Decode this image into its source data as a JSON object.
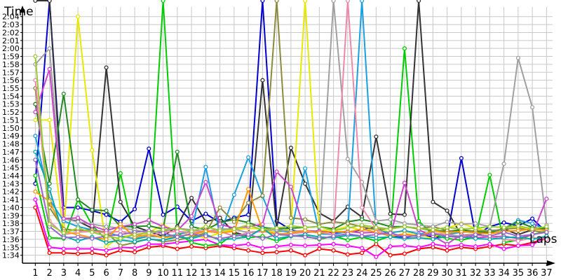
{
  "chart_data": {
    "type": "line",
    "ylabel": "Time",
    "xlabel": "Laps",
    "grid": true,
    "legend": "none",
    "xlim": [
      0,
      37
    ],
    "ylim": [
      "1:33",
      "2:06"
    ],
    "x": [
      1,
      2,
      3,
      4,
      5,
      6,
      7,
      8,
      9,
      10,
      11,
      12,
      13,
      14,
      15,
      16,
      17,
      18,
      19,
      20,
      21,
      22,
      23,
      24,
      25,
      26,
      27,
      28,
      29,
      30,
      31,
      32,
      33,
      34,
      35,
      36,
      37
    ],
    "x_tick_labels": [
      "1",
      "2",
      "3",
      "4",
      "5",
      "6",
      "7",
      "8",
      "9",
      "10",
      "11",
      "12",
      "13",
      "14",
      "15",
      "16",
      "17",
      "18",
      "19",
      "20",
      "21",
      "22",
      "23",
      "24",
      "25",
      "26",
      "27",
      "28",
      "29",
      "30",
      "31",
      "32",
      "33",
      "34",
      "35",
      "36",
      "37"
    ],
    "y_tick_labels": [
      "1:34",
      "1:35",
      "1:36",
      "1:37",
      "1:38",
      "1:39",
      "1:40",
      "1:41",
      "1:42",
      "1:43",
      "1:44",
      "1:45",
      "1:46",
      "1:47",
      "1:48",
      "1:49",
      "1:50",
      "1:51",
      "1:52",
      "1:53",
      "1:54",
      "1:55",
      "1:56",
      "1:57",
      "1:58",
      "1:59",
      "2:00",
      "2:01",
      "2:02",
      "2:03",
      "2:04"
    ],
    "series": [
      {
        "color": "#ff0000",
        "values": [
          "1:40",
          "1:34.3",
          "1:34.3",
          "1:34.2",
          "1:34.3",
          "1:34.0",
          "1:34.6",
          "1:34.4",
          "1:35.0",
          "1:35.2",
          "1:34.8",
          "1:35.1",
          "1:34.9",
          "1:35.2",
          "1:34.9",
          "1:34.6",
          "1:34.3",
          "1:34.4",
          "1:34.6",
          "1:34.0",
          "1:34.8",
          "1:34.6",
          "1:34.1",
          "1:34.3",
          "1:35.4",
          "1:34.0",
          "1:34.2",
          "1:34.8",
          "1:35.0",
          "1:34.6",
          "1:35.0",
          "1:34.8",
          "1:35.1",
          "1:35.4",
          "1:35.2",
          "1:35.6",
          "1:36.1"
        ]
      },
      {
        "color": "#ff00ff",
        "values": [
          "1:41",
          "1:35.0",
          "1:34.8",
          "1:34.8",
          "1:34.8",
          "1:34.6",
          "1:35.0",
          "1:34.9",
          "1:35.4",
          "1:35.4",
          "1:35.6",
          "1:35.8",
          "1:36.0",
          "1:35.3",
          "1:35.2",
          "1:35.4",
          "1:34.9",
          "1:35.1",
          "1:35.3",
          "1:35.2",
          "1:35.3",
          "1:35.4",
          "1:35.2",
          "1:34.9",
          "1:33.8",
          "1:35.1",
          "1:35.2",
          "1:35.0",
          "1:35.4",
          "1:35.1",
          "1:35.3",
          "1:35.1",
          "1:35.4",
          "1:34.8",
          "1:35.2",
          "1:35.3",
          "1:36.4"
        ]
      },
      {
        "color": "#0000cc",
        "values": [
          "1:43",
          "2:06",
          "1:40",
          "1:40",
          "1:39.6",
          "1:39.1",
          "1:38.2",
          "1:39.8",
          "1:47.4",
          "1:39.1",
          "1:40.1",
          "1:38.3",
          "1:39.2",
          "1:38.1",
          "1:38.7",
          "1:39.1",
          "2:06",
          "1:38.3",
          "1:37.2",
          "1:36.8",
          "1:37.1",
          "1:36.8",
          "1:36.9",
          "1:37.2",
          "1:37.5",
          "1:36.4",
          "1:36.2",
          "1:36.6",
          "1:36.3",
          "1:36.3",
          "1:46.2",
          "1:36.5",
          "1:37.6",
          "1:38.1",
          "1:37.7",
          "1:38.6",
          "1:36.9"
        ]
      },
      {
        "color": "#00cc00",
        "values": [
          "1:44",
          "1:36.2",
          "1:36.1",
          "1:41",
          "1:37.8",
          "1:35.9",
          "1:44.3",
          "1:36.0",
          "1:36.4",
          "2:06",
          "1:36.8",
          "1:35.6",
          "1:35.2",
          "1:35.4",
          "1:36.7",
          "1:36.2",
          "1:36.4",
          "1:35.8",
          "1:36.4",
          "1:36.4",
          "1:36.0",
          "1:36.4",
          "1:35.9",
          "1:36.3",
          "1:35.8",
          "1:36.4",
          "2:00",
          "1:38.3",
          "1:36.6",
          "1:36.1",
          "1:35.9",
          "1:36.3",
          "1:44.1",
          "1:35.6",
          "1:35.9",
          "1:36.6",
          "1:37.0"
        ]
      },
      {
        "color": "#333333",
        "values": [
          "2:06",
          "2:06",
          "1:38.6",
          "1:38.3",
          "1:37.4",
          "1:57.6",
          "1:40.7",
          "1:37.6",
          "1:37.0",
          "1:36.4",
          "1:37.6",
          "1:41.2",
          "1:38.2",
          "1:38.7",
          "1:36.9",
          "1:36.4",
          "1:56",
          "1:37.4",
          "1:47.5",
          "1:43.0",
          "1:39.3",
          "1:38.3",
          "1:40.1",
          "1:38.8",
          "1:48.9",
          "1:39.2",
          "1:39.1",
          "2:06",
          "1:40.7",
          "1:39.6",
          "1:36.5",
          "1:36.6",
          "1:36.9",
          "1:37.3",
          "1:36.6",
          "1:37.2",
          "1:37.5"
        ]
      },
      {
        "color": "#e8e800",
        "values": [
          "1:51",
          "1:51",
          "1:36.6",
          "2:04",
          "1:47.2",
          "1:35.1",
          "1:36.3",
          "1:36.6",
          "1:36.9",
          "1:37.8",
          "1:37.0",
          "1:36.5",
          "1:36.2",
          "1:36.8",
          "1:37.2",
          "1:37.4",
          "1:37.3",
          "1:36.8",
          "1:37.4",
          "2:06",
          "1:37.1",
          "1:37.2",
          "1:37.6",
          "1:37.1",
          "1:37.4",
          "1:36.9",
          "1:37.0",
          "1:36.6",
          "1:36.1",
          "1:37.4",
          "1:38.0",
          "1:37.4",
          "1:37.0",
          "1:37.3",
          "1:37.5",
          "1:37.4",
          "1:37.2"
        ]
      },
      {
        "color": "#1a9fe0",
        "values": [
          "1:49",
          "1:41",
          "1:38.3",
          "1:37.6",
          "1:37.2",
          "1:36.9",
          "1:36.4",
          "1:36.1",
          "1:36.4",
          "1:36.3",
          "1:36.6",
          "1:37.0",
          "1:45.1",
          "1:36.5",
          "1:41.6",
          "1:46.3",
          "1:41.4",
          "1:37.1",
          "1:36.9",
          "1:44.9",
          "1:36.7",
          "1:36.6",
          "1:37.0",
          "2:06",
          "1:37.2",
          "1:36.8",
          "1:37.1",
          "1:36.7",
          "1:36.8",
          "1:36.6",
          "1:36.9",
          "1:37.0",
          "1:37.1",
          "1:37.2",
          "1:38.4",
          "1:38.0",
          "1:37.2"
        ]
      },
      {
        "color": "#228822",
        "values": [
          "1:53",
          "1:43",
          "1:54.3",
          "1:41",
          "1:39.7",
          "1:39.6",
          "1:37.6",
          "1:37.6",
          "1:37.7",
          "1:37.3",
          "1:47",
          "1:37.6",
          "1:37.2",
          "1:38.1",
          "1:38.5",
          "1:38.1",
          "1:37.5",
          "1:37.3",
          "1:37.4",
          "1:37.5",
          "1:37.6",
          "1:37.3",
          "1:38.2",
          "1:38.5",
          "1:38.1",
          "1:37.6",
          "1:37.6",
          "1:37.4",
          "1:37.1",
          "1:37.0",
          "1:37.2",
          "1:37.0",
          "1:36.8",
          "1:37.4",
          "1:38.2",
          "1:37.5",
          "1:37.3"
        ]
      },
      {
        "color": "#8b8b3c",
        "values": [
          "1:55",
          "1:40",
          "1:37.3",
          "1:37.1",
          "1:37.2",
          "1:36.9",
          "1:35.2",
          "1:35.6",
          "1:36.1",
          "1:35.7",
          "1:35.9",
          "1:36.3",
          "1:36.8",
          "1:40",
          "1:38.2",
          "1:40.6",
          "1:41.5",
          "2:06",
          "1:38.7",
          "1:38.5",
          "1:37.9",
          "1:38.2",
          "1:38.0",
          "1:37.6",
          "1:37.2",
          "1:37.4",
          "1:37.6",
          "1:37.3",
          "1:37.6",
          "1:37.1",
          "1:36.9",
          "1:37.1",
          "1:37.0",
          "1:37.3",
          "1:37.4",
          "1:37.1",
          "1:36.8"
        ]
      },
      {
        "color": "#a0a0a0",
        "values": [
          "1:58",
          "2:00",
          "1:38.6",
          "1:38.2",
          "1:37.9",
          "1:37.6",
          "1:37.4",
          "1:37.2",
          "1:36.8",
          "1:37.0",
          "1:37.4",
          "1:37.2",
          "1:37.0",
          "1:37.3",
          "1:37.3",
          "1:36.8",
          "1:37.1",
          "1:37.2",
          "1:37.0",
          "1:37.1",
          "1:36.9",
          "2:06",
          "1:46.1",
          "1:43.2",
          "1:38.3",
          "1:38.5",
          "1:38.0",
          "1:37.8",
          "1:37.6",
          "1:38.2",
          "1:37.9",
          "1:38.0",
          "1:37.6",
          "1:45.5",
          "1:58.8",
          "1:52.6",
          "1:37.8"
        ]
      },
      {
        "color": "#cc44cc",
        "values": [
          "1:52",
          "1:57.4",
          "1:38.6",
          "1:38.7",
          "1:37.7",
          "1:37.1",
          "1:37.6",
          "1:37.9",
          "1:38.4",
          "1:37.6",
          "1:37.1",
          "1:38.9",
          "1:43.2",
          "1:37.9",
          "1:37.4",
          "1:37.6",
          "1:37.9",
          "1:44.5",
          "1:42.6",
          "1:37.1",
          "1:37.0",
          "1:36.9",
          "1:37.0",
          "1:36.8",
          "1:36.9",
          "1:36.5",
          "1:43.1",
          "1:37.2",
          "1:36.4",
          "1:35.4",
          "1:36.6",
          "1:36.2",
          "1:36.3",
          "1:36.4",
          "1:36.1",
          "1:36.6",
          "1:41.1"
        ]
      },
      {
        "color": "#ee88aa",
        "values": [
          "1:56",
          "1:38.3",
          "1:36.6",
          "1:36.9",
          "1:37.0",
          "1:36.8",
          "1:37.0",
          "1:36.6",
          "1:36.4",
          "1:36.9",
          "1:37.0",
          "1:36.8",
          "1:37.1",
          "1:37.0",
          "1:36.4",
          "1:36.8",
          "1:37.0",
          "1:36.7",
          "1:36.7",
          "1:36.9",
          "1:36.9",
          "1:36.6",
          "2:06",
          "1:40",
          "1:37.3",
          "1:36.4",
          "1:36.6",
          "1:36.3",
          "1:36.8",
          "1:36.6",
          "1:36.4",
          "1:36.6",
          "1:36.3",
          "1:36.0",
          "1:35.8",
          "1:36.2",
          "1:36.0"
        ]
      },
      {
        "color": "#ff9900",
        "values": [
          "1:42",
          "1:40.8",
          "1:37.0",
          "1:36.6",
          "1:36.2",
          "1:36.0",
          "1:37.9",
          "1:36.3",
          "1:36.6",
          "1:36.2",
          "1:36.4",
          "1:36.6",
          "1:37.0",
          "1:36.8",
          "1:37.0",
          "1:42.3",
          "1:37.1",
          "1:36.6",
          "1:36.8",
          "1:37.1",
          "1:36.8",
          "1:37.0",
          "1:36.9",
          "1:37.3",
          "1:36.9",
          "1:36.4",
          "1:36.7",
          "1:36.4",
          "1:37.1",
          "1:36.8",
          "1:37.0",
          "1:36.8",
          "1:36.7",
          "1:37.0",
          "1:37.1",
          "1:37.3",
          "1:37.1"
        ]
      },
      {
        "color": "#00aaaa",
        "values": [
          "1:47",
          "1:42.3",
          "1:36.4",
          "1:35.8",
          "1:36.3",
          "1:35.6",
          "1:35.9",
          "1:35.7",
          "1:36.0",
          "1:35.9",
          "1:36.3",
          "1:36.1",
          "1:36.6",
          "1:35.9",
          "1:36.1",
          "1:36.3",
          "1:37.4",
          "1:36.1",
          "1:36.4",
          "1:36.6",
          "1:36.3",
          "1:36.2",
          "1:36.5",
          "1:36.4",
          "1:36.2",
          "1:36.3",
          "1:36.1",
          "1:36.2",
          "1:36.0",
          "1:36.4",
          "1:36.3",
          "1:36.1",
          "1:36.0",
          "1:36.2",
          "1:36.3",
          "1:36.0",
          "1:36.4"
        ]
      },
      {
        "color": "#9966cc",
        "values": [
          "1:46",
          "1:37.6",
          "1:36.2",
          "1:36.3",
          "1:36.1",
          "1:36.4",
          "1:36.6",
          "1:36.9",
          "1:37.1",
          "1:36.8",
          "1:36.3",
          "1:36.7",
          "1:36.4",
          "1:36.1",
          "1:36.4",
          "1:36.6",
          "1:36.1",
          "1:36.6",
          "1:36.5",
          "1:36.3",
          "1:36.1",
          "1:36.4",
          "1:36.7",
          "1:36.4",
          "1:36.6",
          "1:36.8",
          "1:36.3",
          "1:36.5",
          "1:36.7",
          "1:36.4",
          "1:36.2",
          "1:36.6",
          "1:36.4",
          "1:36.9",
          "1:36.4",
          "1:36.6",
          "1:36.9"
        ]
      },
      {
        "color": "#99cc33",
        "values": [
          "1:59",
          "1:37.9",
          "1:36.8",
          "1:37.4",
          "1:36.9",
          "1:36.4",
          "1:36.1",
          "1:36.6",
          "1:36.8",
          "1:37.2",
          "1:37.4",
          "1:37.0",
          "1:37.6",
          "1:37.1",
          "1:37.3",
          "1:37.8",
          "1:37.2",
          "1:37.4",
          "1:37.7",
          "1:37.5",
          "1:37.6",
          "1:37.1",
          "1:37.4",
          "1:37.8",
          "1:37.5",
          "1:37.3",
          "1:37.6",
          "1:37.4",
          "1:37.2",
          "1:37.5",
          "1:37.3",
          "1:37.4",
          "1:37.6",
          "1:37.5",
          "1:37.7",
          "1:37.3",
          "1:37.6"
        ]
      }
    ]
  }
}
